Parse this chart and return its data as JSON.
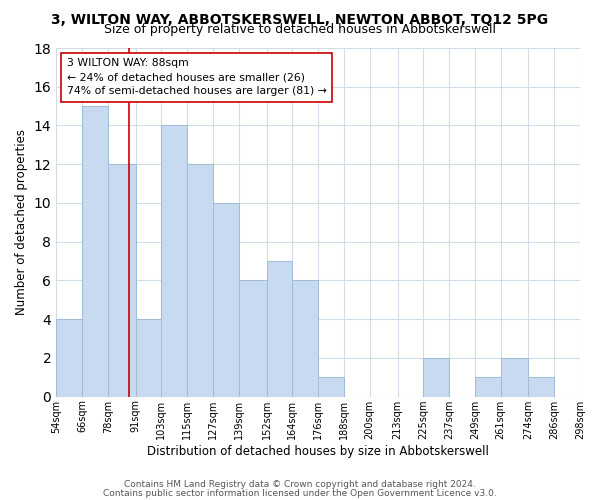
{
  "title": "3, WILTON WAY, ABBOTSKERSWELL, NEWTON ABBOT, TQ12 5PG",
  "subtitle": "Size of property relative to detached houses in Abbotskerswell",
  "xlabel": "Distribution of detached houses by size in Abbotskerswell",
  "ylabel": "Number of detached properties",
  "bar_edges": [
    54,
    66,
    78,
    91,
    103,
    115,
    127,
    139,
    152,
    164,
    176,
    188,
    200,
    213,
    225,
    237,
    249,
    261,
    274,
    286,
    298
  ],
  "bar_heights": [
    4,
    15,
    12,
    4,
    14,
    12,
    10,
    6,
    7,
    6,
    1,
    0,
    0,
    0,
    2,
    0,
    1,
    2,
    1,
    0
  ],
  "bar_color": "#c8daf0",
  "bar_edge_color": "#a0bcd8",
  "vline_x": 88,
  "vline_color": "#cc0000",
  "annotation_line1": "3 WILTON WAY: 88sqm",
  "annotation_line2": "← 24% of detached houses are smaller (26)",
  "annotation_line3": "74% of semi-detached houses are larger (81) →",
  "annotation_box_color": "#ffffff",
  "annotation_box_edge": "#cc0000",
  "ylim": [
    0,
    18
  ],
  "yticks": [
    0,
    2,
    4,
    6,
    8,
    10,
    12,
    14,
    16,
    18
  ],
  "xtick_labels": [
    "54sqm",
    "66sqm",
    "78sqm",
    "91sqm",
    "103sqm",
    "115sqm",
    "127sqm",
    "139sqm",
    "152sqm",
    "164sqm",
    "176sqm",
    "188sqm",
    "200sqm",
    "213sqm",
    "225sqm",
    "237sqm",
    "249sqm",
    "261sqm",
    "274sqm",
    "286sqm",
    "298sqm"
  ],
  "footer1": "Contains HM Land Registry data © Crown copyright and database right 2024.",
  "footer2": "Contains public sector information licensed under the Open Government Licence v3.0.",
  "background_color": "#ffffff",
  "grid_color": "#d0dce8",
  "title_fontsize": 10,
  "subtitle_fontsize": 9,
  "axis_label_fontsize": 8.5,
  "tick_fontsize": 7,
  "footer_fontsize": 6.5
}
